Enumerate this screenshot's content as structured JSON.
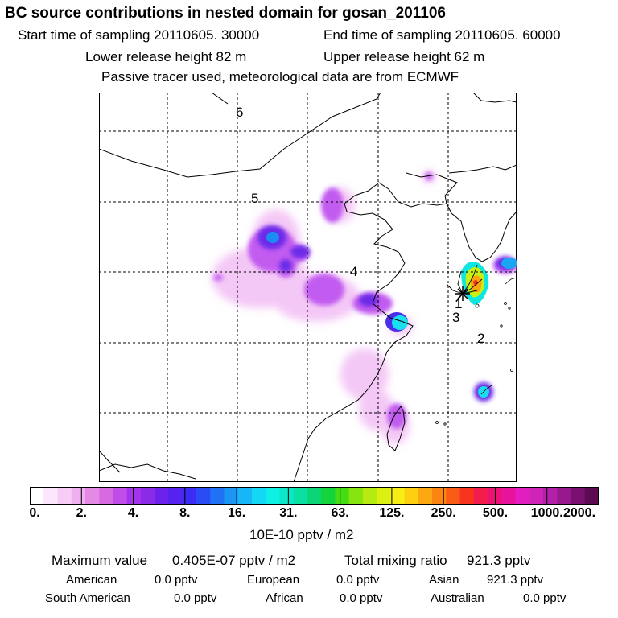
{
  "header": {
    "title": "BC  source contributions in nested domain for gosan_201106",
    "start_time": "Start time of sampling 20110605. 30000",
    "end_time": "End time of sampling 20110605. 60000",
    "lower_release": "Lower release height   82 m",
    "upper_release": "Upper release height   62 m",
    "tracer_note": "Passive tracer used, meteorological data are from ECMWF"
  },
  "map": {
    "trajectory_labels": [
      "1",
      "2",
      "3",
      "4",
      "5",
      "6"
    ],
    "receptor": "gosan"
  },
  "colorbar": {
    "labels": [
      "0.",
      "2.",
      "4.",
      "8.",
      "16.",
      "31.",
      "63.",
      "125.",
      "250.",
      "500.",
      "1000.",
      "2000."
    ],
    "colors": [
      "#ffffff",
      "#fce6fc",
      "#f7cdf7",
      "#f0b0f0",
      "#e48ae6",
      "#d86ae0",
      "#c04cea",
      "#a633ec",
      "#8a2be8",
      "#6c22ea",
      "#5522f0",
      "#3b2cf5",
      "#2a4cf6",
      "#1f72f5",
      "#1b96f5",
      "#18b6f6",
      "#12d8f6",
      "#0ef0e6",
      "#0be8c8",
      "#0ae0a4",
      "#0ad676",
      "#14d43c",
      "#46dc14",
      "#86e410",
      "#b6ea10",
      "#dcf012",
      "#f6ee14",
      "#fcd010",
      "#fca810",
      "#fc8412",
      "#fa5c18",
      "#f8341e",
      "#f41c4c",
      "#ee1274",
      "#e8129c",
      "#e21ec0",
      "#ce24b8",
      "#b420a8",
      "#98188e",
      "#7a1070",
      "#5c0a52"
    ],
    "units": "10E-10 pptv / m2"
  },
  "summary": {
    "max_label": "Maximum value",
    "max_value": "0.405E-07 pptv / m2",
    "total_label": "Total mixing ratio",
    "total_value": "921.3 pptv",
    "contributions": [
      {
        "name": "American",
        "value": "0.0 pptv"
      },
      {
        "name": "European",
        "value": "0.0 pptv"
      },
      {
        "name": "Asian",
        "value": "921.3 pptv"
      },
      {
        "name": "South American",
        "value": "0.0 pptv"
      },
      {
        "name": "African",
        "value": "0.0 pptv"
      },
      {
        "name": "Australian",
        "value": "0.0 pptv"
      }
    ]
  }
}
